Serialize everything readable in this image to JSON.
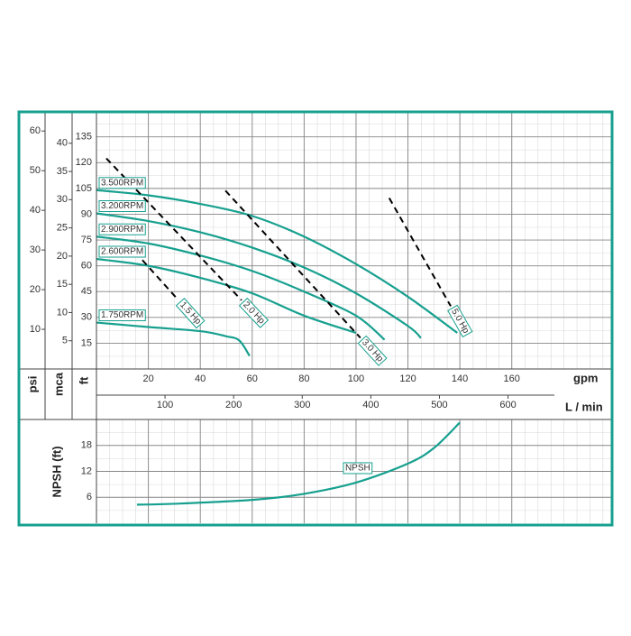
{
  "chart_data": [
    {
      "type": "line",
      "ylabel": "ft",
      "ylim": [
        0,
        149
      ],
      "yticks": [
        15,
        30,
        45,
        60,
        75,
        90,
        105,
        120,
        135
      ],
      "y2label": "psi",
      "y2lim": [
        0,
        64.6
      ],
      "y2ticks": [
        10,
        20,
        30,
        40,
        50,
        60
      ],
      "y3label": "mca",
      "y3lim": [
        0,
        45.4
      ],
      "y3ticks": [
        5,
        10,
        15,
        20,
        25,
        30,
        35,
        40
      ],
      "xlabel": "gpm",
      "xlim": [
        0,
        199
      ],
      "xticks": [
        20,
        40,
        60,
        80,
        100,
        120,
        140,
        160
      ],
      "x2label": "L / min",
      "x2lim": [
        0,
        753
      ],
      "x2ticks": [
        100,
        200,
        300,
        400,
        500,
        600
      ],
      "grid": true,
      "series": [
        {
          "name": "3.500RPM",
          "color": "#17a08f",
          "x": [
            0,
            20,
            40,
            60,
            80,
            100,
            120,
            139
          ],
          "values": [
            104,
            101,
            96,
            89,
            77,
            61,
            42,
            21
          ]
        },
        {
          "name": "3.200RPM",
          "color": "#17a08f",
          "x": [
            0,
            20,
            40,
            60,
            80,
            100,
            120,
            125
          ],
          "values": [
            90.5,
            86,
            79.5,
            70.6,
            59,
            44,
            25,
            18
          ]
        },
        {
          "name": "2.900RPM",
          "color": "#17a08f",
          "x": [
            0,
            20,
            40,
            60,
            80,
            100,
            111
          ],
          "values": [
            77,
            73,
            66,
            57,
            45,
            31,
            17
          ]
        },
        {
          "name": "2.600RPM",
          "color": "#17a08f",
          "x": [
            0,
            20,
            40,
            60,
            80,
            100
          ],
          "values": [
            64,
            60,
            53,
            44,
            31,
            21
          ]
        },
        {
          "name": "1.750RPM",
          "color": "#17a08f",
          "x": [
            0,
            20,
            40,
            50,
            55,
            59
          ],
          "values": [
            27,
            24.4,
            22,
            19,
            16.6,
            7.6
          ]
        }
      ],
      "power_lines": [
        {
          "name": "1.5 Hp",
          "color": "#000000",
          "dashed": true,
          "x": [
            14.9,
            31.6
          ],
          "values": [
            68,
            40
          ]
        },
        {
          "name": "2.0 Hp",
          "color": "#000000",
          "dashed": true,
          "x": [
            3.8,
            55.9
          ],
          "values": [
            122.5,
            40
          ]
        },
        {
          "name": "3.0 Hp",
          "color": "#000000",
          "dashed": true,
          "x": [
            49.7,
            101.7
          ],
          "values": [
            103.7,
            18.1
          ]
        },
        {
          "name": "5.0 Hp",
          "color": "#000000",
          "dashed": true,
          "x": [
            112.8,
            136.5
          ],
          "values": [
            99.4,
            36.5
          ]
        }
      ]
    },
    {
      "type": "line",
      "ylabel": "NPSH (ft)",
      "ylim": [
        0,
        24
      ],
      "yticks": [
        6,
        12,
        18
      ],
      "xlim": [
        0,
        199
      ],
      "grid": true,
      "series": [
        {
          "name": "NPSH",
          "color": "#17a08f",
          "x": [
            15.6,
            30,
            60,
            80,
            100,
            120,
            130,
            140
          ],
          "values": [
            4.3,
            4.5,
            5.4,
            6.8,
            9.4,
            13.8,
            17.4,
            23.3
          ]
        }
      ]
    }
  ]
}
